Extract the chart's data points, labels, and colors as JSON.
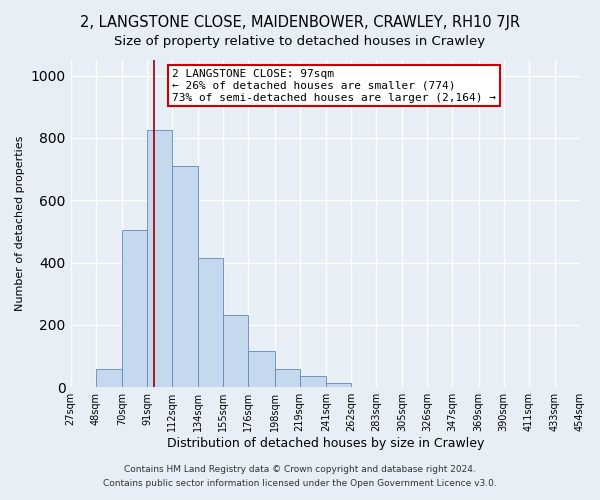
{
  "title": "2, LANGSTONE CLOSE, MAIDENBOWER, CRAWLEY, RH10 7JR",
  "subtitle": "Size of property relative to detached houses in Crawley",
  "xlabel": "Distribution of detached houses by size in Crawley",
  "ylabel": "Number of detached properties",
  "footer_line1": "Contains HM Land Registry data © Crown copyright and database right 2024.",
  "footer_line2": "Contains public sector information licensed under the Open Government Licence v3.0.",
  "bin_edges": [
    27,
    48,
    70,
    91,
    112,
    134,
    155,
    176,
    198,
    219,
    241,
    262,
    283,
    305,
    326,
    347,
    369,
    390,
    411,
    433,
    454
  ],
  "bin_counts": [
    0,
    57,
    505,
    825,
    711,
    415,
    232,
    117,
    57,
    35,
    14,
    0,
    0,
    0,
    0,
    0,
    0,
    0,
    0,
    0
  ],
  "bar_color": "#c5d8ee",
  "bar_edge_color": "#5b8abf",
  "vline_x": 97,
  "vline_color": "#990000",
  "annotation_text_line1": "2 LANGSTONE CLOSE: 97sqm",
  "annotation_text_line2": "← 26% of detached houses are smaller (774)",
  "annotation_text_line3": "73% of semi-detached houses are larger (2,164) →",
  "box_edge_color": "#cc0000",
  "box_face_color": "#ffffff",
  "ylim": [
    0,
    1050
  ],
  "xlim_left": 27,
  "xlim_right": 454,
  "background_color": "#e8eef5",
  "grid_color": "#ffffff",
  "title_fontsize": 10.5,
  "subtitle_fontsize": 9.5,
  "ylabel_fontsize": 8,
  "xlabel_fontsize": 9,
  "tick_fontsize": 7,
  "footer_fontsize": 6.5,
  "annotation_fontsize": 8
}
